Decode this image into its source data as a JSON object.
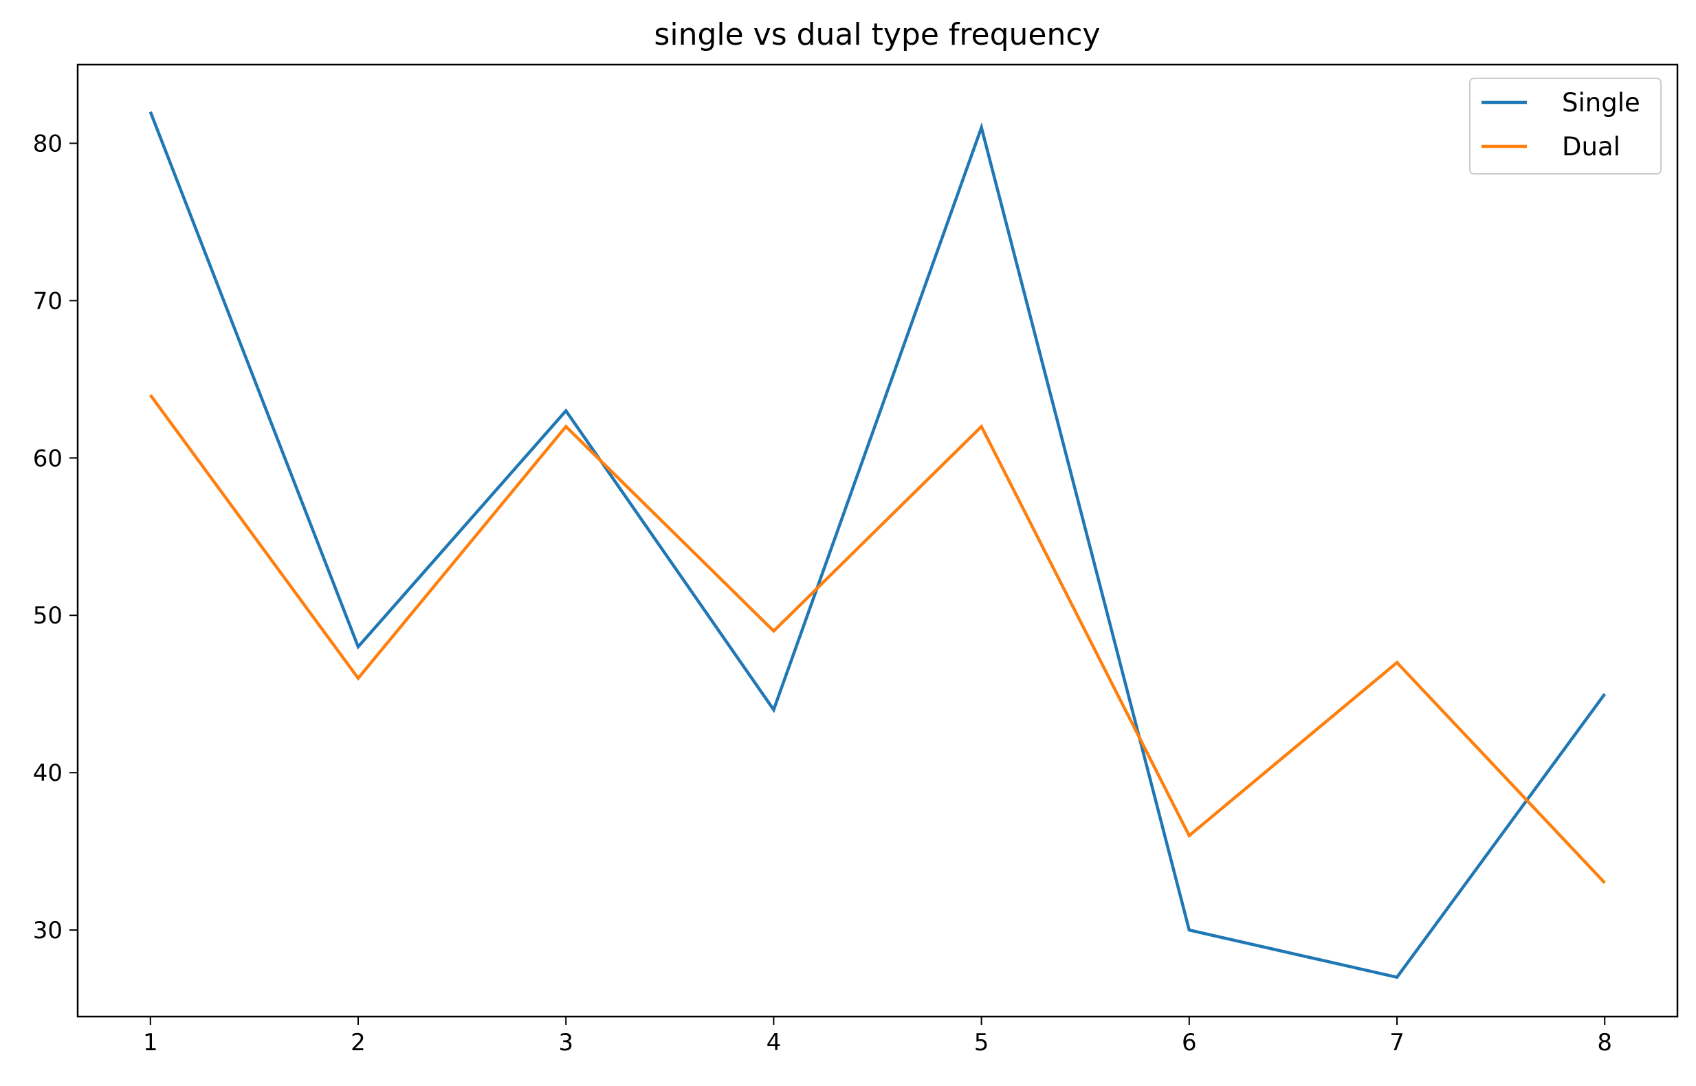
{
  "chart_data": {
    "type": "line",
    "title": "single vs dual type frequency",
    "xlabel": "",
    "ylabel": "",
    "x": [
      1,
      2,
      3,
      4,
      5,
      6,
      7,
      8
    ],
    "xlim": [
      0.65,
      8.35
    ],
    "ylim": [
      24.5,
      85
    ],
    "xticks": [
      1,
      2,
      3,
      4,
      5,
      6,
      7,
      8
    ],
    "yticks": [
      30,
      40,
      50,
      60,
      70,
      80
    ],
    "grid": false,
    "legend_position": "top-right",
    "series": [
      {
        "name": "Single",
        "color": "#1f77b4",
        "values": [
          82,
          48,
          63,
          44,
          81,
          30,
          27,
          45
        ]
      },
      {
        "name": "Dual",
        "color": "#ff7f0e",
        "values": [
          64,
          46,
          62,
          49,
          62,
          36,
          47,
          33
        ]
      }
    ]
  }
}
